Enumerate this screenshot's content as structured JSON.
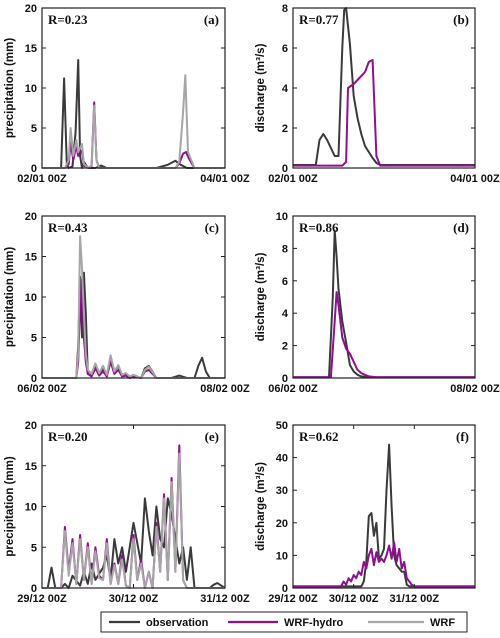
{
  "legend": {
    "placement": "bottom-center",
    "entries": [
      {
        "label": "observation",
        "color": "#3a3a3a"
      },
      {
        "label": "WRF-hydro",
        "color": "#8f0f91"
      },
      {
        "label": "WRF",
        "color": "#a6a6a6"
      }
    ]
  },
  "chart_data": [
    {
      "panel": "(a)",
      "type": "line",
      "r_label": "R=0.23",
      "ylabel": "precipitation (mm)",
      "ylim": [
        0,
        20
      ],
      "yticks": [
        0,
        5,
        10,
        15,
        20
      ],
      "xlim": [
        0,
        48
      ],
      "xticks": [
        {
          "x": 0,
          "label": "02/01 00Z"
        },
        {
          "x": 48,
          "label": "04/01 00Z"
        }
      ],
      "series": [
        {
          "name": "observation",
          "color": "#3a3a3a",
          "x": [
            0,
            5,
            5.8,
            6.5,
            7,
            8,
            8.8,
            9.5,
            10,
            10.5,
            11,
            12,
            14,
            15.5,
            17,
            20,
            24,
            30,
            33,
            35,
            36,
            38,
            48
          ],
          "y": [
            0,
            0,
            11.2,
            0.5,
            0,
            0.2,
            4.5,
            13.5,
            1.5,
            0,
            0.8,
            0,
            0,
            0.3,
            0,
            0,
            0,
            0,
            0.4,
            0.9,
            0.5,
            0,
            0
          ]
        },
        {
          "name": "WRF-hydro",
          "color": "#8f0f91",
          "x": [
            0,
            6,
            7,
            7.5,
            8.2,
            9,
            9.5,
            10.5,
            11,
            12,
            13,
            13.7,
            14.3,
            15,
            17,
            20,
            24,
            30,
            35,
            36,
            37,
            37.8,
            38.5,
            40,
            48
          ],
          "y": [
            0,
            0,
            0.5,
            3.2,
            1,
            2.8,
            1.5,
            2.2,
            0.3,
            0,
            0.2,
            8.2,
            1,
            0,
            0,
            0,
            0,
            0,
            0,
            0.6,
            1.8,
            2,
            1.2,
            0,
            0
          ]
        },
        {
          "name": "WRF",
          "color": "#a6a6a6",
          "x": [
            0,
            6,
            7,
            7.5,
            8.2,
            9,
            9.5,
            10.5,
            11,
            12,
            13,
            13.7,
            14.3,
            15,
            17,
            20,
            24,
            30,
            35,
            36,
            37,
            37.6,
            38.3,
            40,
            48
          ],
          "y": [
            0,
            0,
            1,
            5,
            1.5,
            3.5,
            2,
            3,
            0.5,
            0,
            0.3,
            7.8,
            1,
            0,
            0,
            0,
            0,
            0,
            0,
            0.8,
            7,
            11.6,
            2,
            0,
            0
          ]
        }
      ]
    },
    {
      "panel": "(b)",
      "type": "line",
      "r_label": "R=0.77",
      "ylabel": "discharge (m³/s)",
      "ylim": [
        0,
        8
      ],
      "yticks": [
        0,
        2,
        4,
        6,
        8
      ],
      "xlim": [
        0,
        48
      ],
      "xticks": [
        {
          "x": 0,
          "label": "02/01 00Z"
        },
        {
          "x": 48,
          "label": "04/01 00Z"
        }
      ],
      "series": [
        {
          "name": "observation",
          "color": "#3a3a3a",
          "x": [
            0,
            6,
            7,
            8,
            9,
            10,
            11,
            12,
            13,
            13.5,
            14,
            15,
            16,
            17,
            18,
            19,
            20,
            21,
            22,
            23,
            24,
            48
          ],
          "y": [
            0.15,
            0.15,
            1.4,
            1.7,
            1.4,
            1.0,
            0.6,
            0.6,
            6.0,
            7.9,
            8.0,
            6.2,
            3.6,
            2.5,
            1.7,
            1.1,
            0.8,
            0.5,
            0.25,
            0.15,
            0.15,
            0.15
          ]
        },
        {
          "name": "WRF-hydro",
          "color": "#8f0f91",
          "x": [
            0,
            13,
            14,
            14.5,
            16,
            18,
            19,
            20,
            21,
            22,
            23,
            48
          ],
          "y": [
            0.12,
            0.12,
            0.3,
            4.0,
            4.2,
            4.6,
            4.8,
            5.3,
            5.4,
            0.6,
            0.12,
            0.12
          ]
        }
      ]
    },
    {
      "panel": "(c)",
      "type": "line",
      "r_label": "R=0.43",
      "ylabel": "precipitation (mm)",
      "ylim": [
        0,
        20
      ],
      "yticks": [
        0,
        5,
        10,
        15,
        20
      ],
      "xlim": [
        0,
        48
      ],
      "xticks": [
        {
          "x": 0,
          "label": "06/02 00Z"
        },
        {
          "x": 48,
          "label": "08/02 00Z"
        }
      ],
      "series": [
        {
          "name": "observation",
          "color": "#3a3a3a",
          "x": [
            0,
            9,
            9.5,
            10,
            10.5,
            11,
            11.5,
            12,
            13,
            14,
            15,
            16,
            17,
            18,
            19,
            20,
            21,
            22,
            23,
            24,
            26,
            27,
            28,
            30,
            34,
            36,
            38,
            40,
            41,
            42,
            43,
            44,
            46,
            48
          ],
          "y": [
            0,
            0,
            4,
            12.5,
            5,
            13,
            8,
            0.5,
            0.3,
            1.5,
            0.5,
            1.2,
            0.2,
            2.5,
            0.8,
            1.5,
            0.3,
            0.5,
            0,
            0.3,
            0,
            1.2,
            1.5,
            0,
            0,
            0.3,
            0,
            0,
            1.5,
            2.5,
            0.8,
            0,
            0,
            0
          ]
        },
        {
          "name": "WRF-hydro",
          "color": "#8f0f91",
          "x": [
            0,
            9,
            9.5,
            10,
            10.5,
            11,
            11.5,
            12,
            13,
            14,
            15,
            16,
            17,
            18,
            19,
            20,
            21,
            22,
            23,
            24,
            26,
            27,
            28,
            30,
            48
          ],
          "y": [
            0,
            0,
            2,
            9.5,
            12.2,
            5,
            2,
            0.5,
            0.2,
            1.2,
            0.3,
            0.8,
            0.2,
            2.0,
            0.5,
            1.0,
            0.2,
            0.3,
            0,
            0.2,
            0,
            0.8,
            1.0,
            0,
            0
          ]
        },
        {
          "name": "WRF",
          "color": "#a6a6a6",
          "x": [
            0,
            9,
            9.5,
            10,
            10.5,
            11,
            11.5,
            12,
            13,
            14,
            15,
            16,
            17,
            18,
            19,
            20,
            21,
            22,
            23,
            24,
            26,
            27,
            28,
            30,
            48
          ],
          "y": [
            0,
            0,
            3,
            17.5,
            13.5,
            8,
            3,
            1,
            0.5,
            1.8,
            0.6,
            1.5,
            0.4,
            2.8,
            0.8,
            1.6,
            0.4,
            0.6,
            0.2,
            0.4,
            0,
            1.0,
            1.4,
            0,
            0
          ]
        }
      ]
    },
    {
      "panel": "(d)",
      "type": "line",
      "r_label": "R=0.86",
      "ylabel": "discharge (m³/s)",
      "ylim": [
        0,
        10
      ],
      "yticks": [
        0,
        2,
        4,
        6,
        8,
        10
      ],
      "xlim": [
        0,
        48
      ],
      "xticks": [
        {
          "x": 0,
          "label": "06/02 00Z"
        },
        {
          "x": 48,
          "label": "08/02 00Z"
        }
      ],
      "series": [
        {
          "name": "observation",
          "color": "#3a3a3a",
          "x": [
            0,
            9.5,
            10.5,
            11,
            11.5,
            12,
            13,
            14,
            15,
            16,
            17,
            18,
            20,
            48
          ],
          "y": [
            0.05,
            0.05,
            5,
            9.1,
            7.5,
            5.5,
            3.5,
            2.2,
            0.8,
            0.4,
            0.2,
            0.1,
            0.05,
            0.05
          ]
        },
        {
          "name": "WRF-hydro",
          "color": "#8f0f91",
          "x": [
            0,
            10,
            11,
            11.5,
            12,
            13,
            14,
            15,
            16,
            17,
            18,
            19,
            20,
            22,
            48
          ],
          "y": [
            0.05,
            0.05,
            3.5,
            5.3,
            4.5,
            2.5,
            1.8,
            1.5,
            1.0,
            0.5,
            0.3,
            0.2,
            0.1,
            0.05,
            0.05
          ]
        }
      ]
    },
    {
      "panel": "(e)",
      "type": "line",
      "r_label": "R=0.20",
      "ylabel": "precipitation (mm)",
      "ylim": [
        0,
        20
      ],
      "yticks": [
        0,
        5,
        10,
        15,
        20
      ],
      "xlim": [
        0,
        48
      ],
      "xticks": [
        {
          "x": 0,
          "label": "29/12 00Z"
        },
        {
          "x": 24,
          "label": "30/12 00Z"
        },
        {
          "x": 48,
          "label": "31/12 00Z"
        }
      ],
      "series": [
        {
          "name": "observation",
          "color": "#3a3a3a",
          "x": [
            0,
            1.5,
            2.5,
            3.5,
            5,
            6,
            7,
            8,
            10,
            11,
            12,
            13,
            14,
            16,
            17,
            18,
            19,
            20,
            21,
            22,
            24,
            26,
            27,
            28,
            29,
            30,
            31,
            32,
            33,
            34,
            35,
            36,
            37,
            38,
            39,
            40,
            42,
            44,
            45,
            46,
            47,
            48
          ],
          "y": [
            0,
            0,
            2.5,
            0,
            0,
            0.5,
            0,
            1.5,
            0.3,
            2,
            0.5,
            3,
            1,
            2.5,
            4,
            1,
            6,
            3,
            5,
            2,
            8,
            3,
            11,
            7,
            4,
            10,
            6,
            5,
            11,
            9,
            6,
            3,
            5,
            1,
            5,
            0,
            0,
            0,
            0.4,
            0.6,
            0.3,
            0
          ]
        },
        {
          "name": "WRF-hydro",
          "color": "#8f0f91",
          "x": [
            0,
            5,
            6,
            7,
            8,
            9,
            10,
            11,
            12,
            13,
            14,
            15,
            16,
            17,
            18,
            19,
            20,
            21,
            22,
            23,
            24,
            25,
            26,
            27,
            28,
            29,
            30,
            31,
            32,
            33,
            34,
            35,
            36,
            37,
            38,
            39,
            40,
            48
          ],
          "y": [
            0,
            0,
            7.5,
            2,
            6,
            0.5,
            6.5,
            1,
            5.5,
            0.5,
            5,
            1.5,
            1,
            6,
            0.5,
            3,
            0.5,
            4,
            0.3,
            0,
            6.5,
            1,
            3.5,
            0,
            2,
            0,
            8,
            2,
            11.5,
            1,
            13.5,
            2,
            17.5,
            1,
            0,
            0,
            0,
            0
          ]
        },
        {
          "name": "WRF",
          "color": "#a6a6a6",
          "x": [
            0,
            5,
            6,
            7,
            8,
            9,
            10,
            11,
            12,
            13,
            14,
            15,
            16,
            17,
            18,
            19,
            20,
            21,
            22,
            23,
            24,
            25,
            26,
            27,
            28,
            29,
            30,
            31,
            32,
            33,
            34,
            35,
            36,
            37,
            38,
            39,
            40,
            48
          ],
          "y": [
            0,
            0,
            7,
            1.5,
            5.5,
            0.5,
            6,
            1,
            5,
            0.5,
            4.5,
            1.2,
            1,
            5.5,
            0.5,
            2.8,
            0.5,
            3.5,
            0.3,
            0,
            6,
            1,
            3,
            0,
            2,
            0,
            7.5,
            2,
            11,
            1,
            13,
            2,
            16.5,
            1,
            0,
            0,
            0,
            0
          ]
        }
      ]
    },
    {
      "panel": "(f)",
      "type": "line",
      "r_label": "R=0.62",
      "ylabel": "discharge (m³/s)",
      "ylim": [
        0,
        50
      ],
      "yticks": [
        0,
        10,
        20,
        30,
        40,
        50
      ],
      "xlim": [
        0,
        72
      ],
      "xticks": [
        {
          "x": 0,
          "label": "29/12 00Z"
        },
        {
          "x": 24,
          "label": "30/12 00Z"
        },
        {
          "x": 48,
          "label": "31/12 00Z"
        }
      ],
      "series": [
        {
          "name": "observation",
          "color": "#3a3a3a",
          "x": [
            0,
            27,
            28,
            29,
            30,
            31,
            32,
            33,
            34,
            35,
            36,
            37,
            38,
            39,
            40,
            41,
            42,
            43,
            44,
            45,
            46,
            47,
            48,
            72
          ],
          "y": [
            0.5,
            0.5,
            2,
            8,
            22,
            23,
            16,
            20,
            9,
            10,
            12,
            30,
            44,
            25,
            10,
            7,
            6,
            5,
            5,
            1,
            0.5,
            0.5,
            0.5,
            0.5
          ]
        },
        {
          "name": "WRF-hydro",
          "color": "#8f0f91",
          "x": [
            0,
            19,
            20,
            21,
            22,
            23,
            24,
            25,
            26,
            27,
            28,
            29,
            30,
            31,
            32,
            33,
            34,
            35,
            36,
            37,
            38,
            39,
            40,
            41,
            42,
            43,
            44,
            45,
            46,
            47,
            48,
            72
          ],
          "y": [
            0.5,
            0.5,
            2,
            1,
            3,
            2,
            4,
            3,
            5,
            4,
            8,
            6,
            10,
            12,
            7,
            11,
            8,
            9,
            8,
            10,
            13,
            9,
            14,
            8,
            12,
            6,
            8,
            3,
            2,
            1,
            0.5,
            0.5
          ]
        }
      ]
    }
  ]
}
